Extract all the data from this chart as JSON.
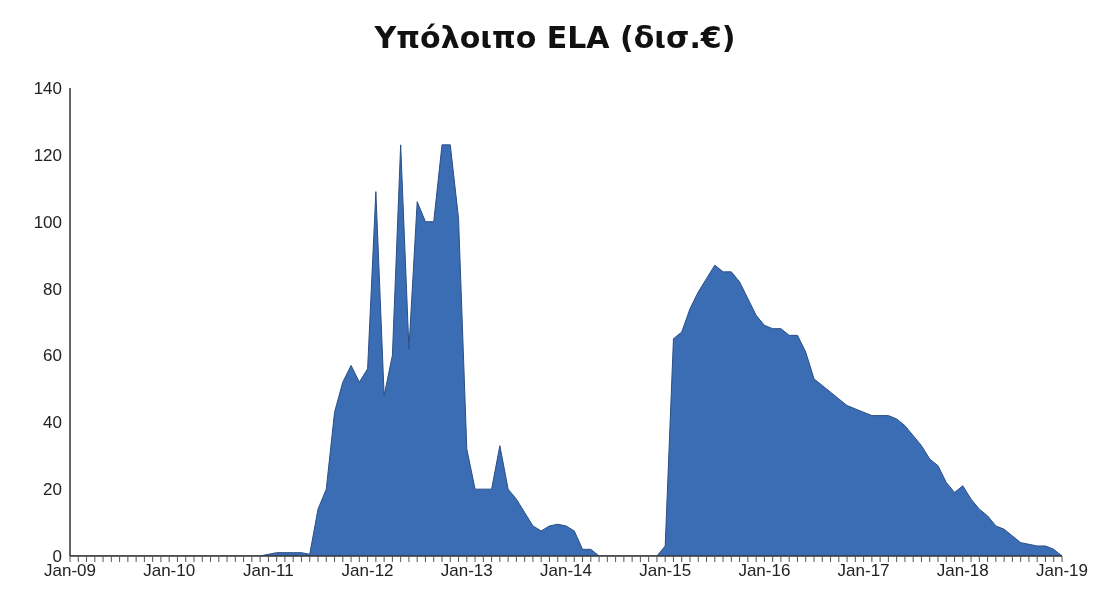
{
  "chart_data": {
    "type": "area",
    "title": "Υπόλοιπο ELA (δισ.€)",
    "categories": [
      "Jan-09",
      null,
      null,
      null,
      null,
      null,
      null,
      null,
      null,
      null,
      null,
      null,
      "Jan-10",
      null,
      null,
      null,
      null,
      null,
      null,
      null,
      null,
      null,
      null,
      null,
      "Jan-11",
      null,
      null,
      null,
      null,
      null,
      null,
      null,
      null,
      null,
      null,
      null,
      "Jan-12",
      null,
      null,
      null,
      null,
      null,
      null,
      null,
      null,
      null,
      null,
      null,
      "Jan-13",
      null,
      null,
      null,
      null,
      null,
      null,
      null,
      null,
      null,
      null,
      null,
      "Jan-14",
      null,
      null,
      null,
      null,
      null,
      null,
      null,
      null,
      null,
      null,
      null,
      "Jan-15",
      null,
      null,
      null,
      null,
      null,
      null,
      null,
      null,
      null,
      null,
      null,
      "Jan-16",
      null,
      null,
      null,
      null,
      null,
      null,
      null,
      null,
      null,
      null,
      null,
      "Jan-17",
      null,
      null,
      null,
      null,
      null,
      null,
      null,
      null,
      null,
      null,
      null,
      "Jan-18",
      null,
      null,
      null,
      null,
      null,
      null,
      null,
      null,
      null,
      null,
      null,
      "Jan-19"
    ],
    "values": [
      0,
      0,
      0,
      0,
      0,
      0,
      0,
      0,
      0,
      0,
      0,
      0,
      0,
      0,
      0,
      0,
      0,
      0,
      0,
      0,
      0,
      0,
      0,
      0,
      0.5,
      1,
      1,
      1,
      1,
      0.5,
      14,
      20,
      43,
      52,
      57,
      52,
      56,
      109,
      48,
      60,
      123,
      62,
      106,
      100,
      100,
      123,
      123,
      101,
      32,
      20,
      20,
      20,
      33,
      20,
      17,
      13,
      9,
      7.5,
      9,
      9.5,
      9,
      7.5,
      2,
      2,
      0,
      0,
      0,
      0,
      0,
      0,
      0,
      0,
      3,
      65,
      67,
      74,
      79,
      83,
      87,
      85,
      85,
      82,
      77,
      72,
      69,
      68,
      68,
      66,
      66,
      61,
      53,
      51,
      49,
      47,
      45,
      44,
      43,
      42,
      42,
      42,
      41,
      39,
      36,
      33,
      29,
      27,
      22,
      19,
      21,
      17,
      14,
      12,
      9,
      8,
      6,
      4,
      3.5,
      3,
      3,
      2,
      0
    ],
    "color": "#3a6db3",
    "ylim": [
      0,
      140
    ],
    "yticks": [
      0,
      20,
      40,
      60,
      80,
      100,
      120,
      140
    ],
    "grid": false
  }
}
